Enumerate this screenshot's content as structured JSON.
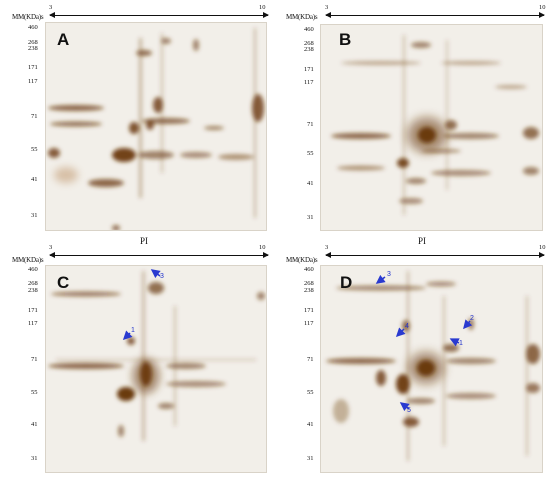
{
  "mm_label": "MM(KDa)s",
  "pi_label": "PI",
  "ph_start": "3",
  "ph_end": "10",
  "mw_ticks": [
    "460",
    "268",
    "238",
    "171",
    "117",
    "71",
    "55",
    "41",
    "31"
  ],
  "panels": [
    {
      "letter": "A"
    },
    {
      "letter": "B"
    },
    {
      "letter": "C",
      "marks": [
        "3",
        "1"
      ]
    },
    {
      "letter": "D",
      "marks": [
        "3",
        "4",
        "2",
        "1",
        "5"
      ]
    }
  ],
  "colors": {
    "spot": "#6b3a0c",
    "background": "#f2efe9",
    "arrow": "#2a3ad0"
  }
}
